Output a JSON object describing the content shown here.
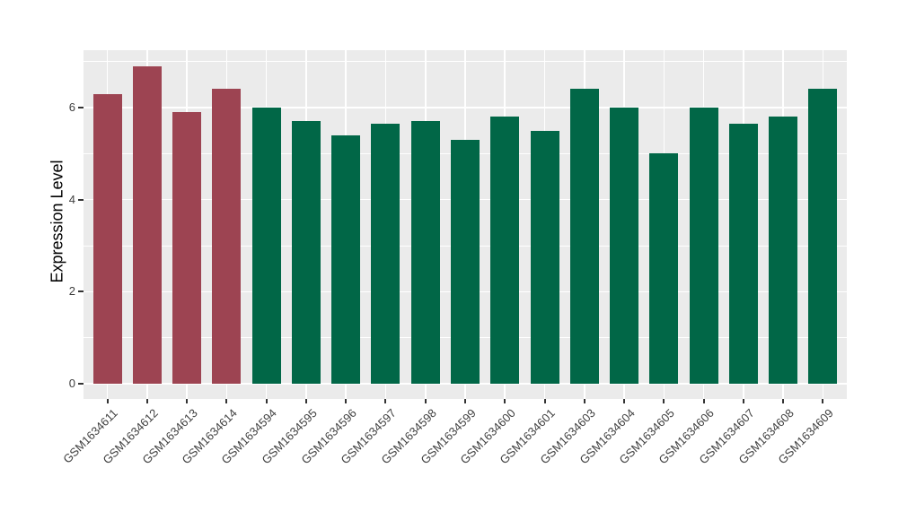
{
  "chart_data": {
    "type": "bar",
    "title": "",
    "xlabel": "",
    "ylabel": "Expression Level",
    "ylim": [
      0,
      7.25
    ],
    "yticks": [
      0,
      2,
      4,
      6
    ],
    "yticks_minor": [
      1,
      3,
      5,
      7
    ],
    "grid": true,
    "legend": "none",
    "categories": [
      "GSM1634611",
      "GSM1634612",
      "GSM1634613",
      "GSM1634614",
      "GSM1634594",
      "GSM1634595",
      "GSM1634596",
      "GSM1634597",
      "GSM1634598",
      "GSM1634599",
      "GSM1634600",
      "GSM1634601",
      "GSM1634603",
      "GSM1634604",
      "GSM1634605",
      "GSM1634606",
      "GSM1634607",
      "GSM1634608",
      "GSM1634609"
    ],
    "values": [
      6.3,
      6.9,
      5.9,
      6.4,
      6.0,
      5.7,
      5.4,
      5.65,
      5.7,
      5.3,
      5.8,
      5.5,
      6.4,
      6.0,
      5.0,
      6.0,
      5.65,
      5.8,
      6.4
    ],
    "bars": [
      {
        "label": "GSM1634611",
        "value": 6.3,
        "group": "highlight"
      },
      {
        "label": "GSM1634612",
        "value": 6.9,
        "group": "highlight"
      },
      {
        "label": "GSM1634613",
        "value": 5.9,
        "group": "highlight"
      },
      {
        "label": "GSM1634614",
        "value": 6.4,
        "group": "highlight"
      },
      {
        "label": "GSM1634594",
        "value": 6.0,
        "group": "normal"
      },
      {
        "label": "GSM1634595",
        "value": 5.7,
        "group": "normal"
      },
      {
        "label": "GSM1634596",
        "value": 5.4,
        "group": "normal"
      },
      {
        "label": "GSM1634597",
        "value": 5.65,
        "group": "normal"
      },
      {
        "label": "GSM1634598",
        "value": 5.7,
        "group": "normal"
      },
      {
        "label": "GSM1634599",
        "value": 5.3,
        "group": "normal"
      },
      {
        "label": "GSM1634600",
        "value": 5.8,
        "group": "normal"
      },
      {
        "label": "GSM1634601",
        "value": 5.5,
        "group": "normal"
      },
      {
        "label": "GSM1634603",
        "value": 6.4,
        "group": "normal"
      },
      {
        "label": "GSM1634604",
        "value": 6.0,
        "group": "normal"
      },
      {
        "label": "GSM1634605",
        "value": 5.0,
        "group": "normal"
      },
      {
        "label": "GSM1634606",
        "value": 6.0,
        "group": "normal"
      },
      {
        "label": "GSM1634607",
        "value": 5.65,
        "group": "normal"
      },
      {
        "label": "GSM1634608",
        "value": 5.8,
        "group": "normal"
      },
      {
        "label": "GSM1634609",
        "value": 6.4,
        "group": "normal"
      }
    ],
    "colors": {
      "highlight": "#9D4452",
      "normal": "#016747",
      "panel_bg": "#EBEBEB",
      "grid": "#FFFFFF",
      "tick_mark": "#333333",
      "tick_text": "#404040"
    }
  }
}
